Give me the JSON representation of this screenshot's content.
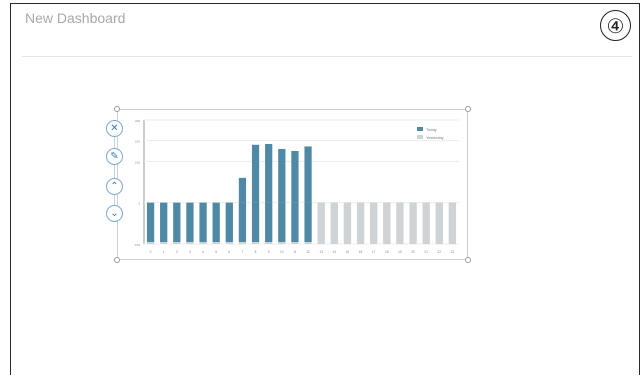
{
  "dashboard": {
    "title": "New Dashboard",
    "step_badge": "④"
  },
  "toolbar": {
    "buttons": [
      {
        "name": "close",
        "glyph": "✕"
      },
      {
        "name": "edit",
        "glyph": "✎"
      },
      {
        "name": "move-up",
        "glyph": "⌃"
      },
      {
        "name": "move-down",
        "glyph": "⌄"
      }
    ]
  },
  "colors": {
    "today": "#4f89a5",
    "yesterday": "#cfd3d6",
    "toolbar_accent": "#3b79b3"
  },
  "chart_data": {
    "type": "bar",
    "categories": [
      "0",
      "1",
      "2",
      "3",
      "4",
      "5",
      "6",
      "7",
      "8",
      "9",
      "10",
      "11",
      "12",
      "13",
      "14",
      "15",
      "16",
      "17",
      "18",
      "19",
      "20",
      "21",
      "22",
      "23"
    ],
    "series": [
      {
        "name": "Today",
        "values": [
          0,
          0,
          0,
          0,
          0,
          0,
          0,
          60,
          140,
          142,
          130,
          125,
          136,
          0,
          0,
          0,
          0,
          0,
          0,
          0,
          0,
          0,
          0,
          0
        ]
      },
      {
        "name": "Yesterday",
        "values": [
          0,
          0,
          0,
          0,
          0,
          0,
          0,
          0,
          0,
          0,
          0,
          0,
          0,
          0,
          0,
          0,
          0,
          0,
          0,
          0,
          0,
          0,
          0,
          0
        ]
      }
    ],
    "baseline_value": 0,
    "ylim": [
      -100,
      200
    ],
    "y_ticks": [
      -100,
      0,
      100,
      150,
      200
    ],
    "grid": true,
    "legend": "top-right"
  }
}
